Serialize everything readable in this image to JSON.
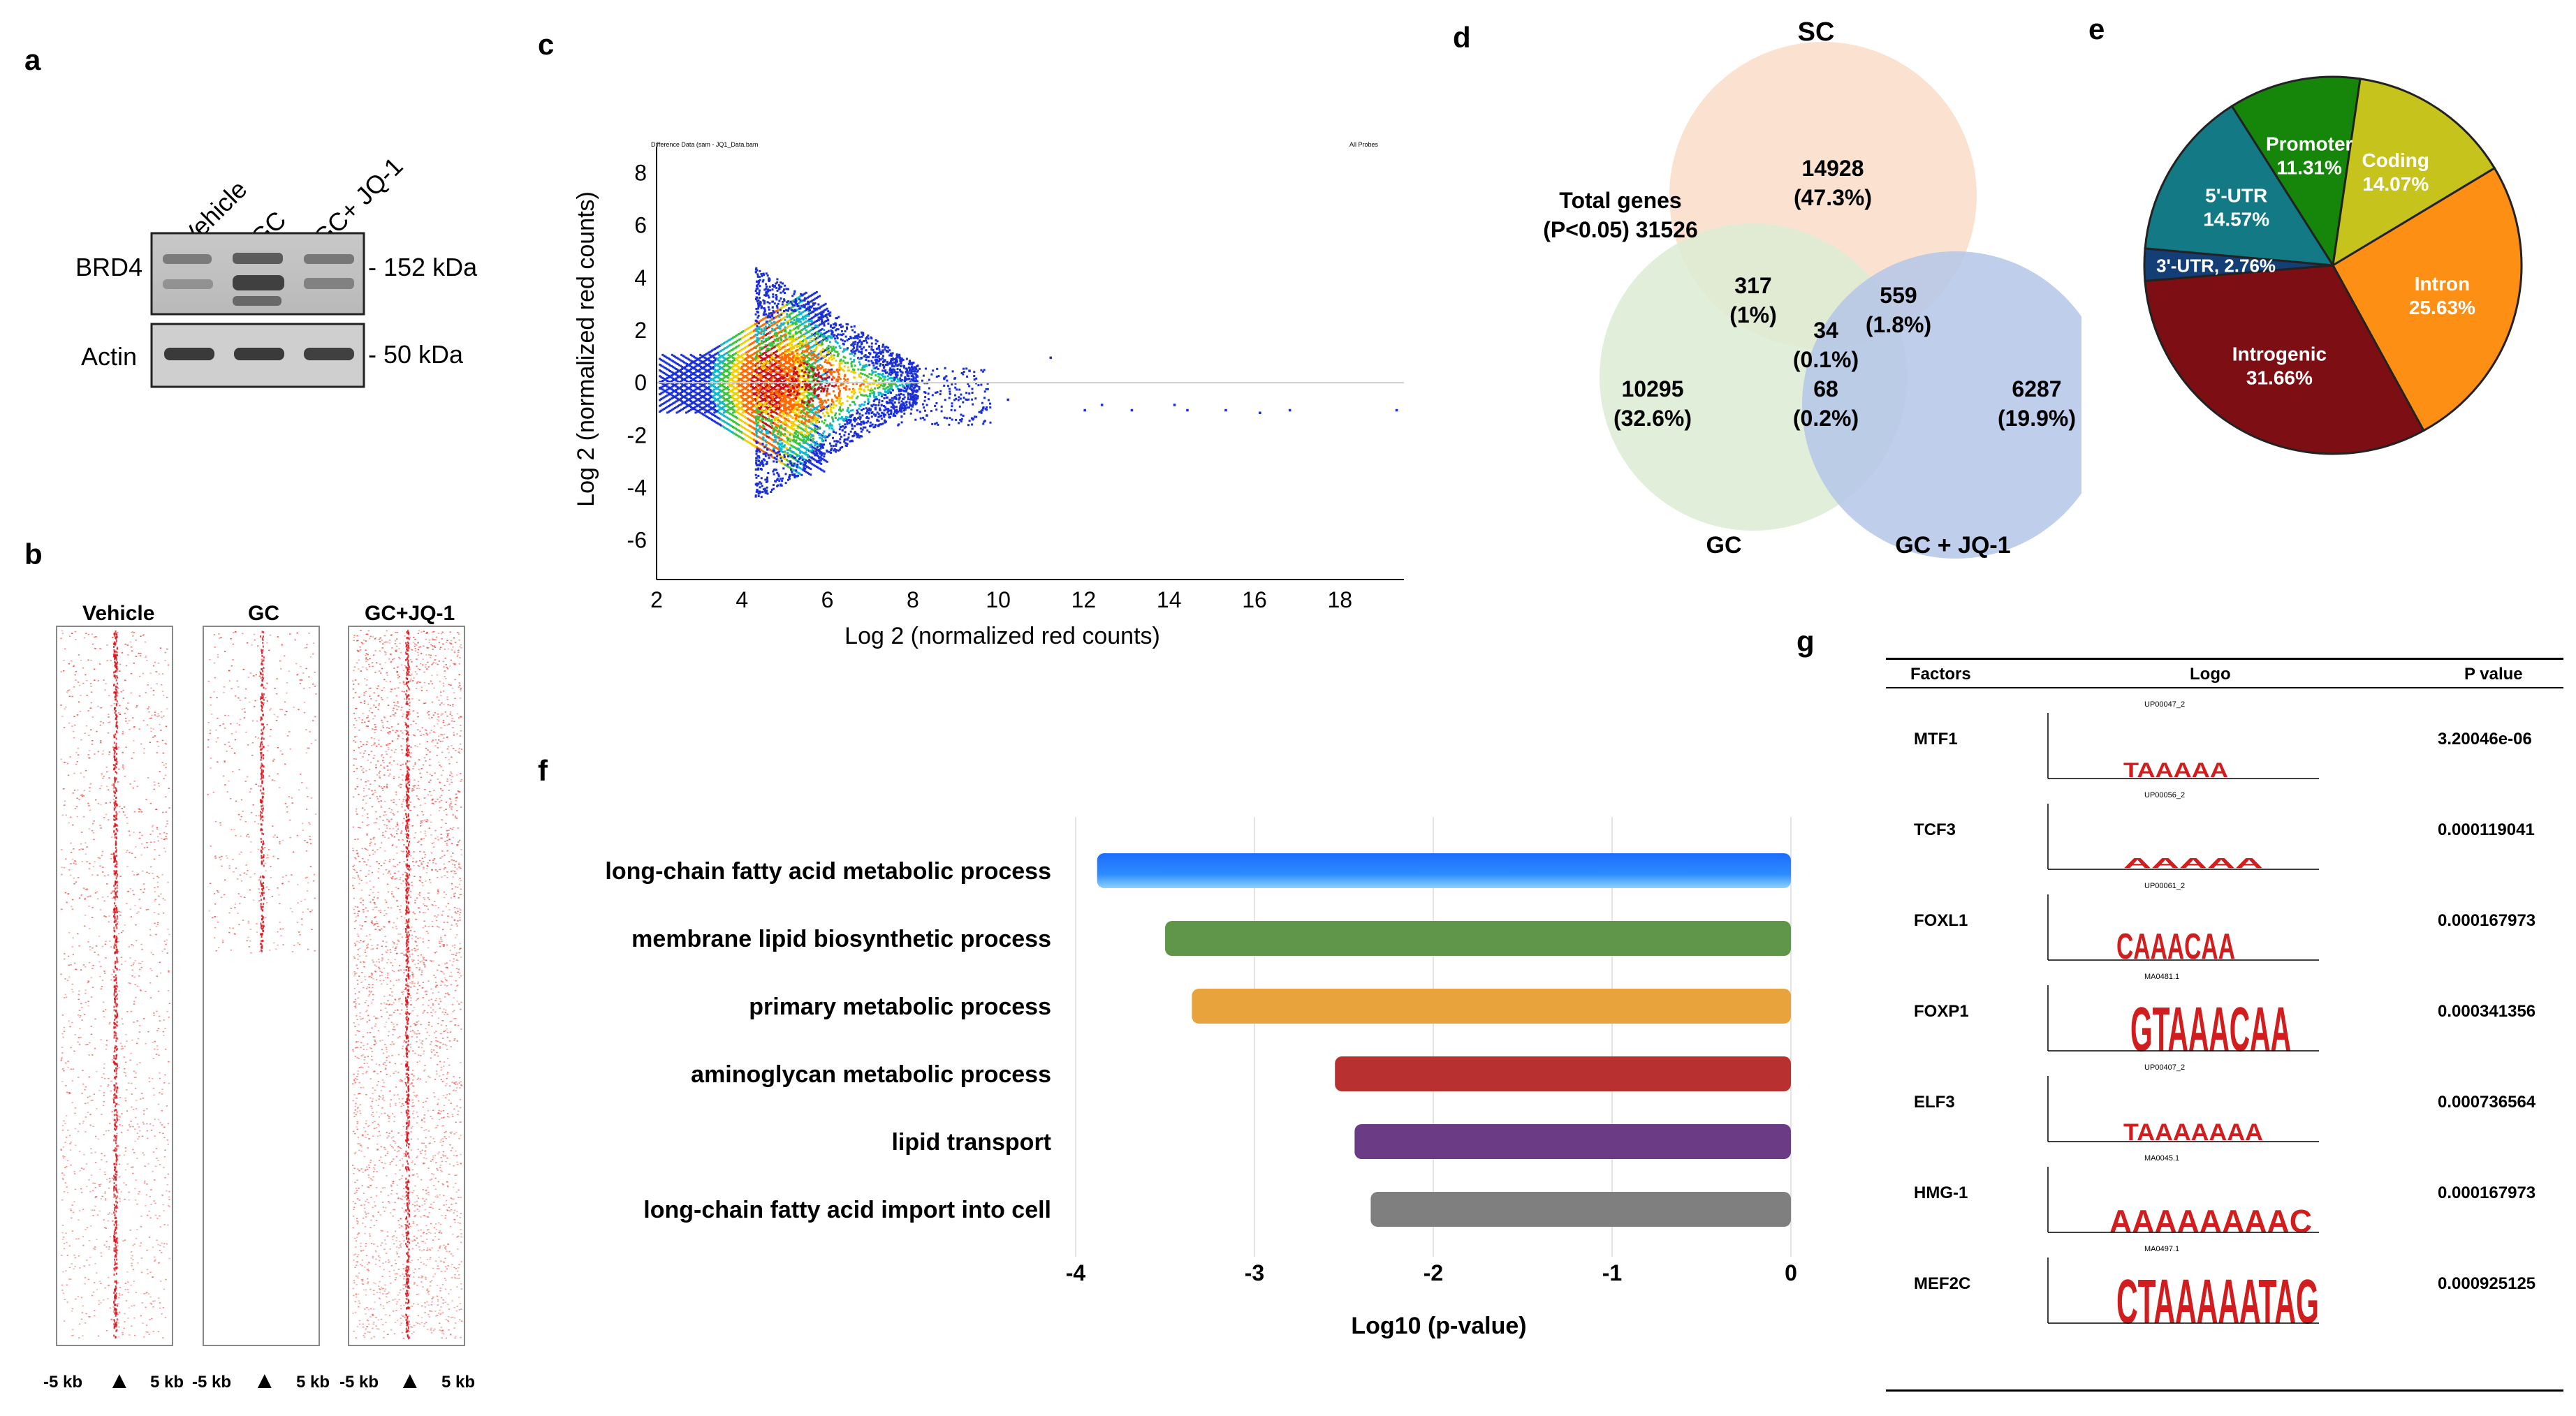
{
  "panels": {
    "a": {
      "label": "a",
      "lanes": [
        "Vehicle",
        "GC",
        "GC+ JQ-1"
      ],
      "rows": [
        {
          "name": "BRD4",
          "size": "152 kDa"
        },
        {
          "name": "Actin",
          "size": "50 kDa"
        }
      ]
    },
    "b": {
      "label": "b",
      "columns": [
        "Vehicle",
        "GC",
        "GC+JQ-1"
      ],
      "axis_left": "-5 kb",
      "axis_right": "5 kb",
      "dot_color": "#e8322b"
    },
    "c": {
      "label": "c",
      "tiny_title_left": "Difference Data (sam - JQ1_Data.bam",
      "tiny_title_right": "All Probes"
    },
    "d": {
      "label": "d",
      "sets": [
        "SC",
        "GC",
        "GC + JQ-1"
      ],
      "total_line1": "Total genes",
      "total_line2": "(P<0.05) 31526",
      "regions": [
        {
          "count": "14928",
          "pct": "(47.3%)"
        },
        {
          "count": "10295",
          "pct": "(32.6%)"
        },
        {
          "count": "6287",
          "pct": "(19.9%)"
        },
        {
          "count": "317",
          "pct": "(1%)"
        },
        {
          "count": "559",
          "pct": "(1.8%)"
        },
        {
          "count": "68",
          "pct": "(0.2%)"
        },
        {
          "count": "34",
          "pct": "(0.1%)"
        }
      ],
      "colors": {
        "sc": "#f9dcc8",
        "gc": "#dcebd2",
        "jq": "#b4c6e7"
      }
    },
    "e": {
      "label": "e"
    },
    "f": {
      "label": "f"
    },
    "g": {
      "label": "g",
      "headers": [
        "Factors",
        "Logo",
        "P value"
      ],
      "rows": [
        {
          "factor": "MTF1",
          "logo_id": "UP00047_2",
          "p": "3.20046e-06",
          "motif": "TAAAAA"
        },
        {
          "factor": "TCF3",
          "logo_id": "UP00056_2",
          "p": "0.000119041",
          "motif": "AAAAA"
        },
        {
          "factor": "FOXL1",
          "logo_id": "UP00061_2",
          "p": "0.000167973",
          "motif": "CAAACAA"
        },
        {
          "factor": "FOXP1",
          "logo_id": "MA0481.1",
          "p": "0.000341356",
          "motif": "GTAAACAA"
        },
        {
          "factor": "ELF3",
          "logo_id": "UP00407_2",
          "p": "0.000736564",
          "motif": "TAAAAAAA"
        },
        {
          "factor": "HMG-1",
          "logo_id": "MA0045.1",
          "p": "0.000167973",
          "motif": "AAAAAAAAC"
        },
        {
          "factor": "MEF2C",
          "logo_id": "MA0497.1",
          "p": "0.000925125",
          "motif": "CTAAAAATAG"
        }
      ]
    }
  },
  "chart_data": [
    {
      "type": "scatter",
      "panel": "c",
      "xlabel": "Log 2 (normalized red counts)",
      "ylabel": "Log 2 (normalized red counts)",
      "xlim": [
        2,
        19.5
      ],
      "ylim": [
        -7.5,
        9
      ],
      "xticks": [
        "2",
        "4",
        "6",
        "8",
        "10",
        "12",
        "14",
        "16",
        "18"
      ],
      "yticks": [
        "8",
        "6",
        "4",
        "2",
        "0",
        "-2",
        "-4",
        "-6"
      ],
      "xtick_values": [
        2,
        4,
        6,
        8,
        10,
        12,
        14,
        16,
        18
      ],
      "ytick_values": [
        8,
        6,
        4,
        2,
        0,
        -2,
        -4,
        -6
      ],
      "outliers": [
        [
          8.3,
          -1.2
        ],
        [
          9.3,
          0.5
        ],
        [
          9.6,
          -1.0
        ],
        [
          10.2,
          -0.6
        ],
        [
          11.2,
          1.0
        ],
        [
          12.0,
          -1.0
        ],
        [
          12.4,
          -0.8
        ],
        [
          13.1,
          -1.0
        ],
        [
          14.1,
          -0.8
        ],
        [
          14.4,
          -1.0
        ],
        [
          15.3,
          -1.0
        ],
        [
          16.1,
          -1.1
        ],
        [
          16.8,
          -1.0
        ],
        [
          19.3,
          -1.0
        ]
      ]
    },
    {
      "type": "pie",
      "panel": "e",
      "labels": [
        "Promoter",
        "Coding",
        "Intron",
        "Introgenic",
        "3'-UTR",
        "5'-UTR"
      ],
      "values": [
        11.31,
        14.07,
        25.63,
        31.66,
        2.76,
        14.57
      ],
      "display": [
        "Promoter|11.31%",
        "Coding|14.07%",
        "Intron|25.63%",
        "Introgenic|31.66%",
        "3'-UTR, 2.76%",
        "5'-UTR|14.57%"
      ],
      "colors": [
        "#15860a",
        "#c6c41c",
        "#fd8f14",
        "#7d0f14",
        "#143e76",
        "#137a85"
      ]
    },
    {
      "type": "bar",
      "panel": "f",
      "orientation": "horizontal",
      "categories": [
        "long-chain fatty acid metabolic process",
        "membrane lipid biosynthetic process",
        "primary metabolic process",
        "aminoglycan metabolic process",
        "lipid transport",
        "long-chain fatty acid import into cell"
      ],
      "values": [
        -3.88,
        -3.5,
        -3.35,
        -2.55,
        -2.44,
        -2.35
      ],
      "colors": [
        "#2c88ff",
        "#5f964a",
        "#e8a33c",
        "#b93030",
        "#6c3b85",
        "#7f7f7f"
      ],
      "xlabel": "Log10 (p-value)",
      "xlim": [
        -4,
        0
      ],
      "xticks": [
        "-4",
        "-3",
        "-2",
        "-1",
        "0"
      ],
      "xtick_values": [
        -4,
        -3,
        -2,
        -1,
        0
      ]
    }
  ]
}
